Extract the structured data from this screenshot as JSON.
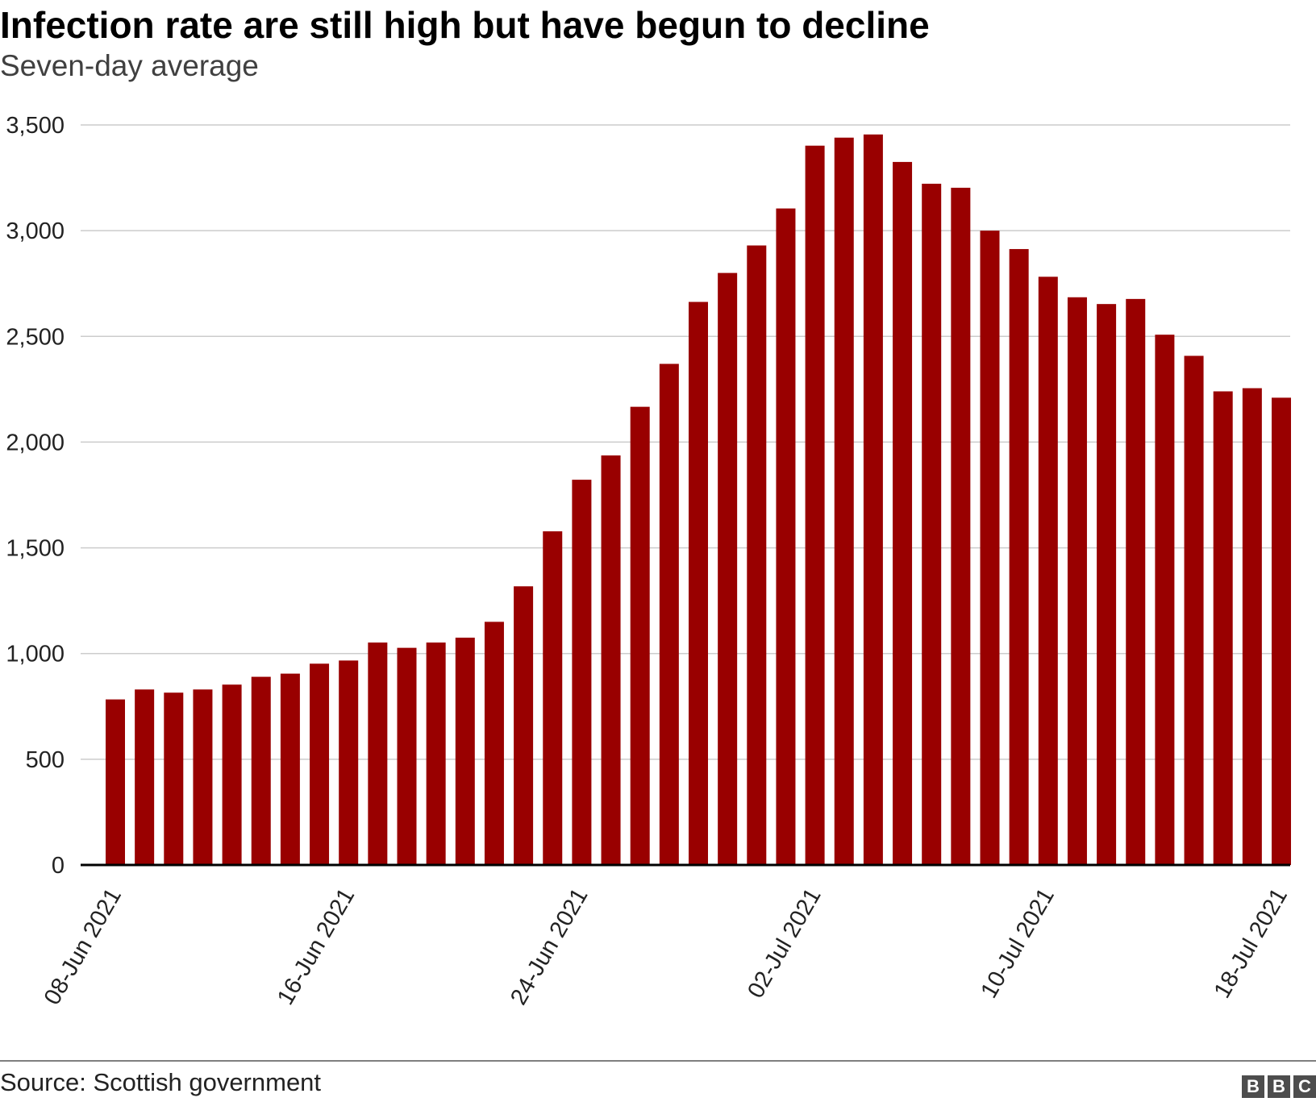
{
  "header": {
    "title": "Infection rate are still high but have begun to decline",
    "subtitle": "Seven-day average"
  },
  "footer": {
    "source": "Source: Scottish government",
    "logo_letters": [
      "B",
      "B",
      "C"
    ]
  },
  "colors": {
    "bar": "#990000",
    "grid": "#cccccc",
    "axis": "#000000",
    "text": "#222222"
  },
  "chart_data": {
    "type": "bar",
    "title": "Infection rate are still high but have begun to decline",
    "subtitle": "Seven-day average",
    "xlabel": "",
    "ylabel": "",
    "ylim": [
      0,
      3500
    ],
    "y_ticks": [
      0,
      500,
      1000,
      1500,
      2000,
      2500,
      3000,
      3500
    ],
    "y_tick_labels": [
      "0",
      "500",
      "1,000",
      "1,500",
      "2,000",
      "2,500",
      "3,000",
      "3,500"
    ],
    "grid": true,
    "legend": "none",
    "categories": [
      "2021-06-08",
      "2021-06-09",
      "2021-06-10",
      "2021-06-11",
      "2021-06-12",
      "2021-06-13",
      "2021-06-14",
      "2021-06-15",
      "2021-06-16",
      "2021-06-17",
      "2021-06-18",
      "2021-06-19",
      "2021-06-20",
      "2021-06-21",
      "2021-06-22",
      "2021-06-23",
      "2021-06-24",
      "2021-06-25",
      "2021-06-26",
      "2021-06-27",
      "2021-06-28",
      "2021-06-29",
      "2021-06-30",
      "2021-07-01",
      "2021-07-02",
      "2021-07-03",
      "2021-07-04",
      "2021-07-05",
      "2021-07-06",
      "2021-07-07",
      "2021-07-08",
      "2021-07-09",
      "2021-07-10",
      "2021-07-11",
      "2021-07-12",
      "2021-07-13",
      "2021-07-14",
      "2021-07-15",
      "2021-07-16",
      "2021-07-17",
      "2021-07-18"
    ],
    "values": [
      783,
      830,
      815,
      830,
      853,
      890,
      905,
      952,
      967,
      1052,
      1027,
      1052,
      1075,
      1150,
      1318,
      1578,
      1822,
      1937,
      2167,
      2370,
      2663,
      2800,
      2930,
      3105,
      3402,
      3440,
      3455,
      3325,
      3222,
      3203,
      3000,
      2913,
      2782,
      2685,
      2653,
      2677,
      2508,
      2408,
      2240,
      2255,
      2210
    ],
    "x_tick_labels": [
      {
        "index": 0,
        "label": "08-Jun 2021"
      },
      {
        "index": 8,
        "label": "16-Jun 2021"
      },
      {
        "index": 16,
        "label": "24-Jun 2021"
      },
      {
        "index": 24,
        "label": "02-Jul 2021"
      },
      {
        "index": 32,
        "label": "10-Jul 2021"
      },
      {
        "index": 40,
        "label": "18-Jul 2021"
      }
    ]
  }
}
